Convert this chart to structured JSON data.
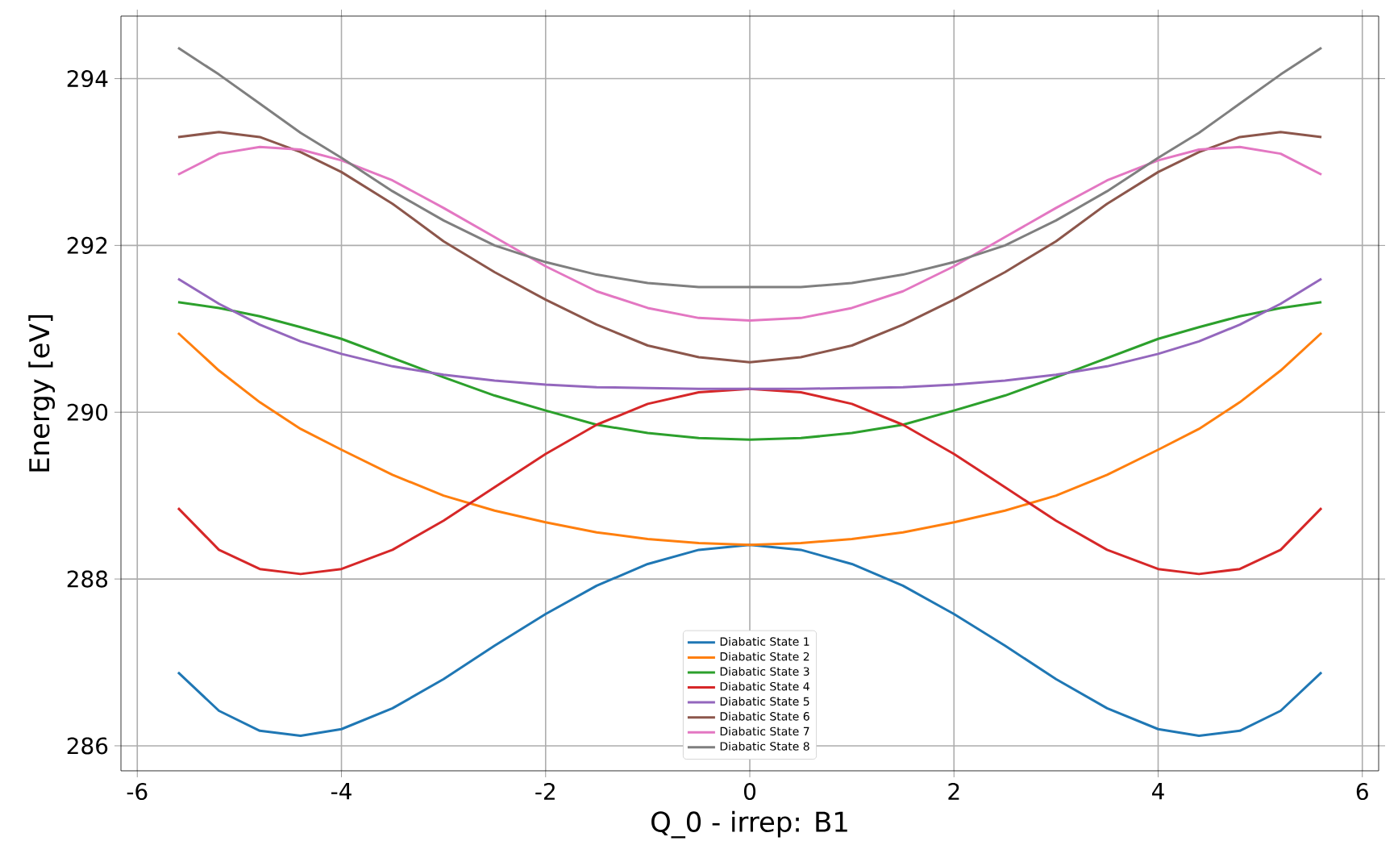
{
  "chart_data": {
    "type": "line",
    "xlabel": "Q_0 - irrep: B1",
    "ylabel": "Energy [eV]",
    "x": [
      -5.6,
      -5.2,
      -4.8,
      -4.4,
      -4,
      -3.5,
      -3,
      -2.5,
      -2,
      -1.5,
      -1,
      -0.5,
      0,
      0.5,
      1,
      1.5,
      2,
      2.5,
      3,
      3.5,
      4,
      4.4,
      4.8,
      5.2,
      5.6
    ],
    "xlim": [
      -6.16,
      6.16
    ],
    "xticks": [
      -6,
      -4,
      -2,
      0,
      2,
      4,
      6
    ],
    "ylim": [
      285.7,
      294.75
    ],
    "yticks": [
      286,
      288,
      290,
      292,
      294
    ],
    "grid": true,
    "legend": "bottom",
    "marker": "none",
    "line_style": "solid",
    "series": [
      {
        "name": "Diabatic State 1",
        "color": "#1f77b4",
        "values": [
          286.88,
          286.42,
          286.18,
          286.12,
          286.2,
          286.45,
          286.8,
          287.2,
          287.58,
          287.92,
          288.18,
          288.35,
          288.41,
          288.35,
          288.18,
          287.92,
          287.58,
          287.2,
          286.8,
          286.45,
          286.2,
          286.12,
          286.18,
          286.42,
          286.88
        ]
      },
      {
        "name": "Diabatic State 2",
        "color": "#ff7f0e",
        "values": [
          290.95,
          290.5,
          290.12,
          289.8,
          289.55,
          289.25,
          289.0,
          288.82,
          288.68,
          288.56,
          288.48,
          288.43,
          288.41,
          288.43,
          288.48,
          288.56,
          288.68,
          288.82,
          289.0,
          289.25,
          289.55,
          289.8,
          290.12,
          290.5,
          290.95
        ]
      },
      {
        "name": "Diabatic State 3",
        "color": "#2ca02c",
        "values": [
          291.32,
          291.25,
          291.15,
          291.02,
          290.88,
          290.65,
          290.42,
          290.2,
          290.02,
          289.85,
          289.75,
          289.69,
          289.67,
          289.69,
          289.75,
          289.85,
          290.02,
          290.2,
          290.42,
          290.65,
          290.88,
          291.02,
          291.15,
          291.25,
          291.32
        ]
      },
      {
        "name": "Diabatic State 4",
        "color": "#d62728",
        "values": [
          288.85,
          288.35,
          288.12,
          288.06,
          288.12,
          288.35,
          288.7,
          289.1,
          289.5,
          289.85,
          290.1,
          290.24,
          290.28,
          290.24,
          290.1,
          289.85,
          289.5,
          289.1,
          288.7,
          288.35,
          288.12,
          288.06,
          288.12,
          288.35,
          288.85
        ]
      },
      {
        "name": "Diabatic State 5",
        "color": "#9467bd",
        "values": [
          291.6,
          291.3,
          291.05,
          290.85,
          290.7,
          290.55,
          290.45,
          290.38,
          290.33,
          290.3,
          290.29,
          290.28,
          290.28,
          290.28,
          290.29,
          290.3,
          290.33,
          290.38,
          290.45,
          290.55,
          290.7,
          290.85,
          291.05,
          291.3,
          291.6
        ]
      },
      {
        "name": "Diabatic State 6",
        "color": "#8c564b",
        "values": [
          293.3,
          293.36,
          293.3,
          293.12,
          292.88,
          292.5,
          292.05,
          291.68,
          291.35,
          291.05,
          290.8,
          290.66,
          290.6,
          290.66,
          290.8,
          291.05,
          291.35,
          291.68,
          292.05,
          292.5,
          292.88,
          293.12,
          293.3,
          293.36,
          293.3
        ]
      },
      {
        "name": "Diabatic State 7",
        "color": "#e377c2",
        "values": [
          292.85,
          293.1,
          293.18,
          293.15,
          293.02,
          292.78,
          292.45,
          292.1,
          291.75,
          291.45,
          291.25,
          291.13,
          291.1,
          291.13,
          291.25,
          291.45,
          291.75,
          292.1,
          292.45,
          292.78,
          293.02,
          293.15,
          293.18,
          293.1,
          292.85
        ]
      },
      {
        "name": "Diabatic State 8",
        "color": "#7f7f7f",
        "values": [
          294.37,
          294.05,
          293.7,
          293.35,
          293.05,
          292.65,
          292.3,
          292.0,
          291.8,
          291.65,
          291.55,
          291.5,
          291.5,
          291.5,
          291.55,
          291.65,
          291.8,
          292.0,
          292.3,
          292.65,
          293.05,
          293.35,
          293.7,
          294.05,
          294.37
        ]
      }
    ]
  }
}
